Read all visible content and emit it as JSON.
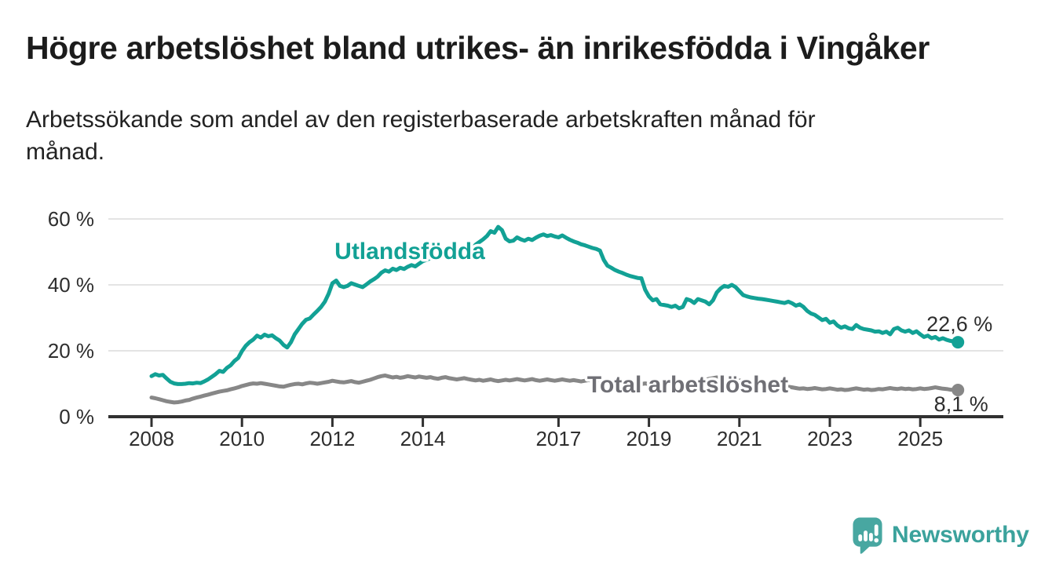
{
  "title": "Högre arbetslöshet bland utrikes- än inrikesfödda i Vingåker",
  "subtitle": {
    "line1": "Arbetssökande som andel av den registerbaserade arbetskraften månad för",
    "line2": "månad."
  },
  "branding": {
    "logo_text": "Newsworthy",
    "logo_icon": "speech-bubble-bar-chart-exclamation",
    "logo_color": "#48a7a1",
    "wordmark_color": "#3ba29c"
  },
  "colors": {
    "accent_teal": "#12a195",
    "series_total_gray": "#878787",
    "total_label_gray": "#6f6f75",
    "grid": "#dbdbdb",
    "axis": "#303030",
    "text": "#2e2e2e",
    "title_text": "#1c1c1c"
  },
  "chart_data": {
    "type": "line",
    "title": "Högre arbetslöshet bland utrikes- än inrikesfödda i Vingåker",
    "subtitle": "Arbetssökande som andel av den registerbaserade arbetskraften månad för månad.",
    "unit": "%",
    "frequency": "monthly",
    "x_start": "2008-01",
    "x_end": "2025-11",
    "grid": "horizontal",
    "legend_position": "inline-labels",
    "ylim": [
      0,
      62
    ],
    "y_ticks": [
      {
        "label": "60 %",
        "value": 60
      },
      {
        "label": "40 %",
        "value": 40
      },
      {
        "label": "20 %",
        "value": 20
      },
      {
        "label": "0 %",
        "value": 0
      }
    ],
    "x_ticks": [
      {
        "label": "2008",
        "year": 2008
      },
      {
        "label": "2010",
        "year": 2010
      },
      {
        "label": "2012",
        "year": 2012
      },
      {
        "label": "2014",
        "year": 2014
      },
      {
        "label": "2017",
        "year": 2017
      },
      {
        "label": "2019",
        "year": 2019
      },
      {
        "label": "2021",
        "year": 2021
      },
      {
        "label": "2023",
        "year": 2023
      },
      {
        "label": "2025",
        "year": 2025
      }
    ],
    "series": [
      {
        "name": "Utlandsfödda",
        "color": "#12a195",
        "label_color": "#12a195",
        "end_label": "22,6 %",
        "end_value": 22.6,
        "values": [
          12.3,
          12.9,
          12.5,
          12.7,
          11.6,
          10.6,
          10.1,
          9.9,
          9.9,
          10.0,
          10.2,
          10.1,
          10.3,
          10.2,
          10.7,
          11.3,
          12.1,
          12.9,
          13.9,
          13.6,
          14.8,
          15.6,
          16.9,
          17.8,
          19.9,
          21.5,
          22.6,
          23.4,
          24.6,
          24.0,
          24.9,
          24.4,
          24.7,
          23.8,
          23.1,
          21.8,
          21.0,
          22.6,
          25.0,
          26.6,
          28.2,
          29.4,
          29.8,
          31.0,
          32.1,
          33.3,
          34.9,
          37.3,
          40.5,
          41.3,
          39.7,
          39.3,
          39.7,
          40.5,
          40.1,
          39.7,
          39.3,
          40.1,
          41.0,
          41.7,
          42.5,
          43.7,
          44.4,
          44.0,
          44.9,
          44.5,
          45.2,
          44.8,
          45.5,
          46.0,
          45.6,
          46.4,
          47.2,
          47.6,
          48.1,
          47.8,
          48.4,
          48.8,
          49.3,
          48.9,
          49.6,
          50.0,
          50.4,
          50.9,
          52.0,
          50.8,
          52.2,
          53.0,
          53.8,
          54.8,
          56.3,
          55.8,
          57.6,
          56.6,
          54.0,
          53.2,
          53.4,
          54.4,
          53.8,
          53.4,
          54.0,
          53.6,
          54.3,
          54.9,
          55.3,
          54.8,
          55.1,
          54.7,
          54.4,
          55.0,
          54.3,
          53.7,
          53.2,
          52.8,
          52.3,
          52.0,
          51.6,
          51.2,
          50.9,
          50.4,
          47.6,
          45.8,
          45.2,
          44.5,
          44.0,
          43.6,
          43.1,
          42.7,
          42.4,
          42.1,
          42.0,
          38.5,
          36.5,
          35.3,
          35.7,
          34.1,
          33.9,
          33.7,
          33.3,
          33.7,
          32.9,
          33.3,
          35.7,
          35.3,
          34.5,
          35.7,
          35.3,
          34.9,
          34.1,
          35.3,
          37.7,
          38.9,
          39.7,
          39.4,
          40.0,
          39.3,
          38.1,
          36.9,
          36.5,
          36.2,
          36.0,
          35.8,
          35.7,
          35.5,
          35.3,
          35.1,
          34.9,
          34.7,
          34.5,
          34.9,
          34.4,
          33.7,
          34.1,
          33.3,
          32.1,
          31.3,
          30.9,
          30.1,
          29.3,
          29.7,
          28.5,
          28.9,
          27.7,
          27.0,
          27.4,
          26.8,
          26.6,
          27.8,
          27.0,
          26.6,
          26.4,
          26.2,
          25.8,
          25.9,
          25.4,
          25.8,
          25.0,
          26.6,
          27.0,
          26.2,
          25.8,
          26.2,
          25.4,
          25.9,
          25.0,
          24.2,
          24.6,
          23.8,
          24.2,
          23.4,
          23.8,
          23.3,
          23.0,
          22.8,
          22.6
        ]
      },
      {
        "name": "Total arbetslöshet",
        "color": "#878787",
        "label_color": "#6f6f75",
        "end_label": "8,1 %",
        "end_value": 8.1,
        "values": [
          5.8,
          5.6,
          5.3,
          5.0,
          4.7,
          4.5,
          4.3,
          4.4,
          4.6,
          4.9,
          5.1,
          5.5,
          5.8,
          6.1,
          6.4,
          6.7,
          7.0,
          7.3,
          7.6,
          7.8,
          8.0,
          8.3,
          8.6,
          8.9,
          9.3,
          9.6,
          9.9,
          10.1,
          10.0,
          10.2,
          10.0,
          9.8,
          9.6,
          9.4,
          9.2,
          9.1,
          9.4,
          9.7,
          9.9,
          10.0,
          9.8,
          10.1,
          10.3,
          10.2,
          10.0,
          10.2,
          10.4,
          10.6,
          10.9,
          10.7,
          10.5,
          10.4,
          10.6,
          10.8,
          10.5,
          10.3,
          10.6,
          10.9,
          11.2,
          11.6,
          12.0,
          12.3,
          12.5,
          12.2,
          11.9,
          12.1,
          11.8,
          12.0,
          12.3,
          12.1,
          11.9,
          12.2,
          12.0,
          11.8,
          12.0,
          11.7,
          11.5,
          11.8,
          12.0,
          11.7,
          11.5,
          11.3,
          11.5,
          11.7,
          11.4,
          11.2,
          11.0,
          11.2,
          10.9,
          11.1,
          11.3,
          11.0,
          10.8,
          11.0,
          11.2,
          11.0,
          11.2,
          11.4,
          11.2,
          11.0,
          11.2,
          11.4,
          11.1,
          10.9,
          11.1,
          11.3,
          11.1,
          10.9,
          11.1,
          11.3,
          11.1,
          10.9,
          11.1,
          10.9,
          10.7,
          10.9,
          11.1,
          10.9,
          10.7,
          10.9,
          10.7,
          10.5,
          10.3,
          10.5,
          10.3,
          10.1,
          10.3,
          10.1,
          9.9,
          10.1,
          9.9,
          10.1,
          9.9,
          10.1,
          9.9,
          9.7,
          9.9,
          10.1,
          10.3,
          10.1,
          9.9,
          10.1,
          10.3,
          10.5,
          10.3,
          10.5,
          10.8,
          11.2,
          11.5,
          11.7,
          11.9,
          11.7,
          11.5,
          11.3,
          11.1,
          11.2,
          11.0,
          10.8,
          10.6,
          10.4,
          10.2,
          10.0,
          9.8,
          9.6,
          9.4,
          9.5,
          9.3,
          9.1,
          9.3,
          9.1,
          8.9,
          8.7,
          8.5,
          8.6,
          8.4,
          8.5,
          8.7,
          8.5,
          8.3,
          8.4,
          8.6,
          8.4,
          8.2,
          8.3,
          8.1,
          8.2,
          8.4,
          8.6,
          8.4,
          8.2,
          8.3,
          8.1,
          8.2,
          8.4,
          8.3,
          8.5,
          8.7,
          8.5,
          8.4,
          8.6,
          8.4,
          8.5,
          8.3,
          8.4,
          8.6,
          8.4,
          8.5,
          8.7,
          8.9,
          8.7,
          8.5,
          8.4,
          8.2,
          8.2,
          8.1
        ]
      }
    ]
  }
}
